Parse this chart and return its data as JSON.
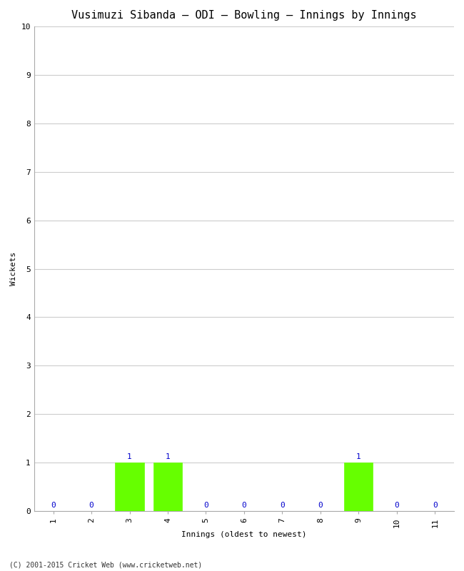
{
  "title": "Vusimuzi Sibanda – ODI – Bowling – Innings by Innings",
  "xlabel": "Innings (oldest to newest)",
  "ylabel": "Wickets",
  "innings": [
    1,
    2,
    3,
    4,
    5,
    6,
    7,
    8,
    9,
    10,
    11
  ],
  "wickets": [
    0,
    0,
    1,
    1,
    0,
    0,
    0,
    0,
    1,
    0,
    0
  ],
  "bar_color": "#66ff00",
  "bar_edge_color": "#66ff00",
  "label_color": "#0000cc",
  "ylim": [
    0,
    10
  ],
  "yticks": [
    0,
    1,
    2,
    3,
    4,
    5,
    6,
    7,
    8,
    9,
    10
  ],
  "background_color": "#ffffff",
  "plot_bg_color": "#ffffff",
  "grid_color": "#cccccc",
  "title_fontsize": 11,
  "axis_label_fontsize": 8,
  "tick_fontsize": 8,
  "annotation_fontsize": 8,
  "footer": "(C) 2001-2015 Cricket Web (www.cricketweb.net)"
}
